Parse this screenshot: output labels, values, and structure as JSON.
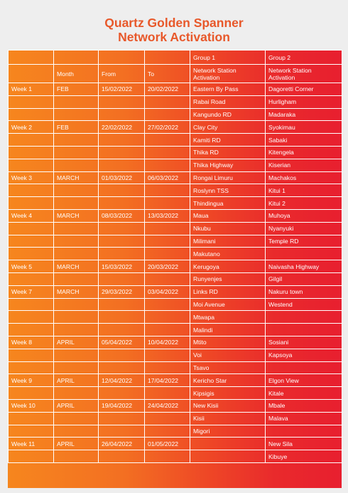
{
  "title": {
    "line1": "Quartz Golden Spanner",
    "line2": "Network Activation"
  },
  "header": {
    "group1": "Group 1",
    "group2": "Group 2",
    "month": "Month",
    "from": "From",
    "to": "To",
    "network_station_1": "Network Station",
    "activation_1": "Activation",
    "network_station_2": "Network Station",
    "activation_2": "Activation"
  },
  "rows": [
    {
      "week": "Week 1",
      "month": "FEB",
      "from": "15/02/2022",
      "to": "20/02/2022",
      "g1": "Eastern By Pass",
      "g2": "Dagoretti Corner"
    },
    {
      "week": "",
      "month": "",
      "from": "",
      "to": "",
      "g1": "Rabai Road",
      "g2": "Hurligham"
    },
    {
      "week": "",
      "month": "",
      "from": "",
      "to": "",
      "g1": "Kangundo RD",
      "g2": "Madaraka"
    },
    {
      "week": "Week 2",
      "month": "FEB",
      "from": "22/02/2022",
      "to": "27/02/2022",
      "g1": "Clay City",
      "g2": "Syokimau"
    },
    {
      "week": "",
      "month": "",
      "from": "",
      "to": "",
      "g1": "Kamiti RD",
      "g2": "Sabaki"
    },
    {
      "week": "",
      "month": "",
      "from": "",
      "to": "",
      "g1": "Thika RD",
      "g2": "Kitengela"
    },
    {
      "week": "",
      "month": "",
      "from": "",
      "to": "",
      "g1": "Thika Highway",
      "g2": "Kiserian"
    },
    {
      "week": "Week 3",
      "month": "MARCH",
      "from": "01/03/2022",
      "to": "06/03/2022",
      "g1": "Rongai Limuru",
      "g2": "Machakos"
    },
    {
      "week": "",
      "month": "",
      "from": "",
      "to": "",
      "g1": "Roslynn TSS",
      "g2": "Kitui 1"
    },
    {
      "week": "",
      "month": "",
      "from": "",
      "to": "",
      "g1": "Thindingua",
      "g2": "Kitui 2"
    },
    {
      "week": "Week 4",
      "month": "MARCH",
      "from": "08/03/2022",
      "to": "13/03/2022",
      "g1": "Maua",
      "g2": "Muhoya"
    },
    {
      "week": "",
      "month": "",
      "from": "",
      "to": "",
      "g1": "Nkubu",
      "g2": "Nyanyuki"
    },
    {
      "week": "",
      "month": "",
      "from": "",
      "to": "",
      "g1": "Milimani",
      "g2": "Temple RD"
    },
    {
      "week": "",
      "month": "",
      "from": "",
      "to": "",
      "g1": "Makutano",
      "g2": ""
    },
    {
      "week": "Week 5",
      "month": "MARCH",
      "from": "15/03/2022",
      "to": "20/03/2022",
      "g1": "Kerugoya",
      "g2": "Naivasha Highway"
    },
    {
      "week": "",
      "month": "",
      "from": "",
      "to": "",
      "g1": "Runyenjes",
      "g2": "Gilgil"
    },
    {
      "week": "Week 7",
      "month": "MARCH",
      "from": "29/03/2022",
      "to": "03/04/2022",
      "g1": "Links RD",
      "g2": "Nakuru town"
    },
    {
      "week": "",
      "month": "",
      "from": "",
      "to": "",
      "g1": "Moi Avenue",
      "g2": "Westend"
    },
    {
      "week": "",
      "month": "",
      "from": "",
      "to": "",
      "g1": "Mtwapa",
      "g2": ""
    },
    {
      "week": "",
      "month": "",
      "from": "",
      "to": "",
      "g1": "Malindi",
      "g2": ""
    },
    {
      "week": "Week 8",
      "month": "APRIL",
      "from": "05/04/2022",
      "to": "10/04/2022",
      "g1": "Mtito",
      "g2": "Sosiani"
    },
    {
      "week": "",
      "month": "",
      "from": "",
      "to": "",
      "g1": "Voi",
      "g2": "Kapsoya"
    },
    {
      "week": "",
      "month": "",
      "from": "",
      "to": "",
      "g1": "Tsavo",
      "g2": ""
    },
    {
      "week": "Week 9",
      "month": "APRIL",
      "from": "12/04/2022",
      "to": "17/04/2022",
      "g1": "Kericho Star",
      "g2": "Elgon View"
    },
    {
      "week": "",
      "month": "",
      "from": "",
      "to": "",
      "g1": "Kipsigis",
      "g2": "Kitale"
    },
    {
      "week": "Week 10",
      "month": "APRIL",
      "from": "19/04/2022",
      "to": "24/04/2022",
      "g1": "New Kisii",
      "g2": "Mbale"
    },
    {
      "week": "",
      "month": "",
      "from": "",
      "to": "",
      "g1": "Kisii",
      "g2": "Malava"
    },
    {
      "week": "",
      "month": "",
      "from": "",
      "to": "",
      "g1": "Migori",
      "g2": ""
    },
    {
      "week": "Week 11",
      "month": "APRIL",
      "from": "26/04/2022",
      "to": "01/05/2022",
      "g1": "",
      "g2": "New Sila"
    },
    {
      "week": "",
      "month": "",
      "from": "",
      "to": "",
      "g1": "",
      "g2": "Kibuye"
    }
  ]
}
